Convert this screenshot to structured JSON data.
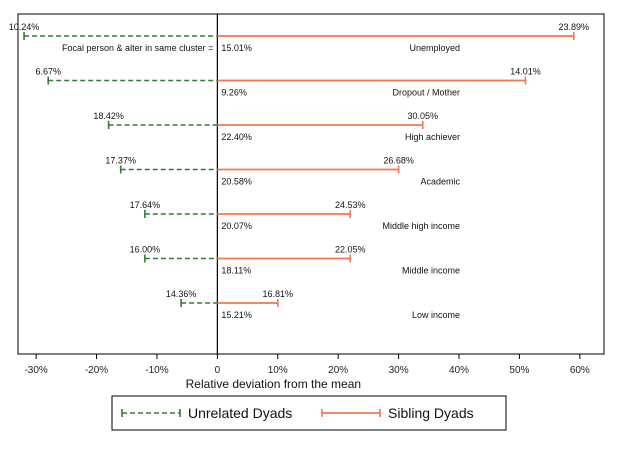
{
  "chart_data": {
    "type": "bar",
    "orientation": "horizontal",
    "title": "",
    "xlabel": "Relative deviation from the mean",
    "ylabel": "",
    "xlim": [
      -0.33,
      0.64
    ],
    "xticks": [
      -0.3,
      -0.2,
      -0.1,
      0,
      0.1,
      0.2,
      0.3,
      0.4,
      0.5,
      0.6
    ],
    "xtick_labels": [
      "-30%",
      "-20%",
      "-10%",
      "0",
      "10%",
      "20%",
      "30%",
      "40%",
      "50%",
      "60%"
    ],
    "grid": false,
    "legend_position": "bottom",
    "annotation": "Focal person & alter in same cluster =",
    "series": [
      {
        "name": "Unrelated Dyads",
        "color": "#2e7d32",
        "style": "dashed"
      },
      {
        "name": "Sibling Dyads",
        "color": "#f07850",
        "style": "solid"
      }
    ],
    "categories": [
      {
        "name": "Unemployed",
        "mean_label": "15.01%",
        "unrelated_label": "10.24%",
        "unrelated_dev": -0.32,
        "sibling_label": "23.89%",
        "sibling_dev": 0.59
      },
      {
        "name": "Dropout / Mother",
        "mean_label": "9.26%",
        "unrelated_label": "6.67%",
        "unrelated_dev": -0.28,
        "sibling_label": "14.01%",
        "sibling_dev": 0.51
      },
      {
        "name": "High achiever",
        "mean_label": "22.40%",
        "unrelated_label": "18.42%",
        "unrelated_dev": -0.18,
        "sibling_label": "30.05%",
        "sibling_dev": 0.34
      },
      {
        "name": "Academic",
        "mean_label": "20.58%",
        "unrelated_label": "17.37%",
        "unrelated_dev": -0.16,
        "sibling_label": "26.68%",
        "sibling_dev": 0.3
      },
      {
        "name": "Middle high income",
        "mean_label": "20.07%",
        "unrelated_label": "17.64%",
        "unrelated_dev": -0.12,
        "sibling_label": "24.53%",
        "sibling_dev": 0.22
      },
      {
        "name": "Middle income",
        "mean_label": "18.11%",
        "unrelated_label": "16.00%",
        "unrelated_dev": -0.12,
        "sibling_label": "22.05%",
        "sibling_dev": 0.22
      },
      {
        "name": "Low income",
        "mean_label": "15.21%",
        "unrelated_label": "14.36%",
        "unrelated_dev": -0.06,
        "sibling_label": "16.81%",
        "sibling_dev": 0.1
      }
    ]
  }
}
